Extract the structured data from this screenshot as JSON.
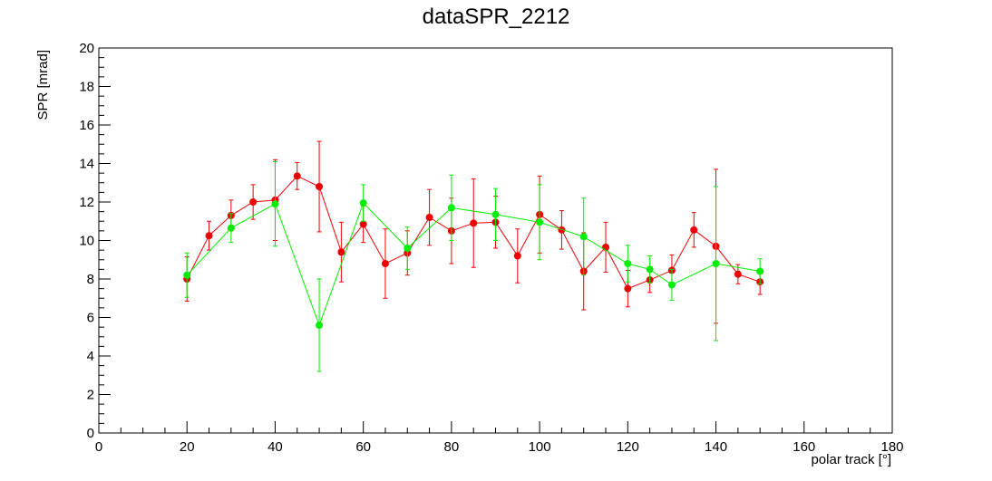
{
  "chart_data": {
    "type": "line",
    "title": "dataSPR_2212",
    "xlabel": "polar track [°]",
    "ylabel": "SPR [mrad]",
    "xlim": [
      0,
      180
    ],
    "ylim": [
      0,
      20
    ],
    "x_major_ticks": [
      0,
      20,
      40,
      60,
      80,
      100,
      120,
      140,
      160,
      180
    ],
    "y_major_ticks": [
      0,
      2,
      4,
      6,
      8,
      10,
      12,
      14,
      16,
      18,
      20
    ],
    "grid": false,
    "legend": "none",
    "series": [
      {
        "color": "#ee0000",
        "points": [
          {
            "x": 20,
            "y": 8.0,
            "err": 1.15
          },
          {
            "x": 25,
            "y": 10.25,
            "err": 0.75
          },
          {
            "x": 30,
            "y": 11.3,
            "err": 0.8
          },
          {
            "x": 35,
            "y": 12.0,
            "err": 0.9
          },
          {
            "x": 40,
            "y": 12.1,
            "err": 2.1
          },
          {
            "x": 45,
            "y": 13.35,
            "err": 0.7
          },
          {
            "x": 50,
            "y": 12.8,
            "err": 2.35
          },
          {
            "x": 55,
            "y": 9.4,
            "err": 1.55
          },
          {
            "x": 60,
            "y": 10.85,
            "err": 0.95
          },
          {
            "x": 65,
            "y": 8.8,
            "err": 1.8
          },
          {
            "x": 70,
            "y": 9.35,
            "err": 1.15
          },
          {
            "x": 75,
            "y": 11.2,
            "err": 1.45
          },
          {
            "x": 80,
            "y": 10.5,
            "err": 1.7
          },
          {
            "x": 85,
            "y": 10.9,
            "err": 2.3
          },
          {
            "x": 90,
            "y": 10.95,
            "err": 1.35
          },
          {
            "x": 95,
            "y": 9.2,
            "err": 1.4
          },
          {
            "x": 100,
            "y": 11.35,
            "err": 2.0
          },
          {
            "x": 105,
            "y": 10.55,
            "err": 1.0
          },
          {
            "x": 110,
            "y": 8.4,
            "err": 2.0
          },
          {
            "x": 115,
            "y": 9.65,
            "err": 1.3
          },
          {
            "x": 120,
            "y": 7.5,
            "err": 0.95
          },
          {
            "x": 125,
            "y": 7.95,
            "err": 0.65
          },
          {
            "x": 130,
            "y": 8.45,
            "err": 0.8
          },
          {
            "x": 135,
            "y": 10.55,
            "err": 0.9
          },
          {
            "x": 140,
            "y": 9.7,
            "err": 4.0
          },
          {
            "x": 145,
            "y": 8.25,
            "err": 0.5
          },
          {
            "x": 150,
            "y": 7.85,
            "err": 0.65
          }
        ]
      },
      {
        "color": "#00ee00",
        "points": [
          {
            "x": 20,
            "y": 8.2,
            "err": 1.15
          },
          {
            "x": 30,
            "y": 10.65,
            "err": 0.75
          },
          {
            "x": 40,
            "y": 11.9,
            "err": 2.2
          },
          {
            "x": 50,
            "y": 5.6,
            "err": 2.4
          },
          {
            "x": 60,
            "y": 11.95,
            "err": 0.95
          },
          {
            "x": 70,
            "y": 9.6,
            "err": 1.1
          },
          {
            "x": 80,
            "y": 11.7,
            "err": 1.7
          },
          {
            "x": 90,
            "y": 11.35,
            "err": 1.35
          },
          {
            "x": 100,
            "y": 10.95,
            "err": 1.95
          },
          {
            "x": 110,
            "y": 10.2,
            "err": 2.0
          },
          {
            "x": 120,
            "y": 8.8,
            "err": 0.95
          },
          {
            "x": 125,
            "y": 8.5,
            "err": 0.7
          },
          {
            "x": 130,
            "y": 7.7,
            "err": 0.8
          },
          {
            "x": 140,
            "y": 8.8,
            "err": 4.0
          },
          {
            "x": 150,
            "y": 8.4,
            "err": 0.65
          }
        ]
      }
    ]
  }
}
